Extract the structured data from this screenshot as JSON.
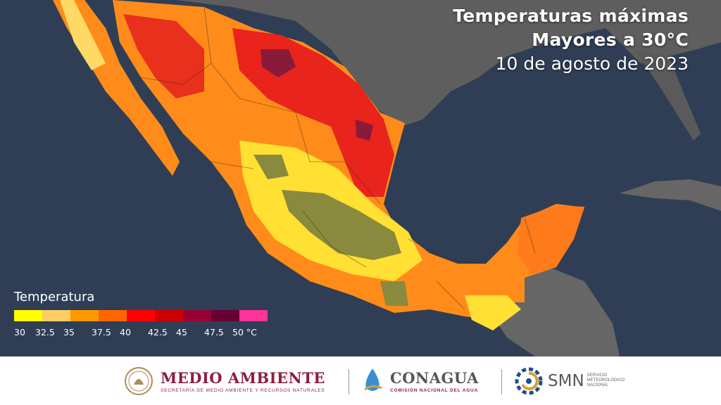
{
  "title": {
    "line1": "Temperaturas máximas",
    "line2": "Mayores a 30°C",
    "date": "10 de agosto de 2023"
  },
  "legend": {
    "title": "Temperatura",
    "colors": [
      "#ffff00",
      "#ffcc66",
      "#ff9900",
      "#ff6600",
      "#ff0000",
      "#cc0000",
      "#990033",
      "#660033",
      "#ff3399"
    ],
    "ticks": [
      "30",
      "32.5",
      "35",
      "37.5",
      "40",
      "42.5",
      "45",
      "47.5",
      "50 °C"
    ]
  },
  "footer": {
    "medio_ambiente": {
      "title": "MEDIO AMBIENTE",
      "subtitle": "SECRETARÍA DE MEDIO AMBIENTE Y RECURSOS NATURALES",
      "icon": "mexico-seal-icon"
    },
    "conagua": {
      "title": "CONAGUA",
      "subtitle": "COMISIÓN NACIONAL DEL AGUA",
      "icon": "conagua-logo-icon"
    },
    "smn": {
      "title": "SMN",
      "subtitle_lines": [
        "SERVICIO",
        "METEOROLÓGICO",
        "NACIONAL"
      ],
      "icon": "smn-logo-icon"
    }
  }
}
